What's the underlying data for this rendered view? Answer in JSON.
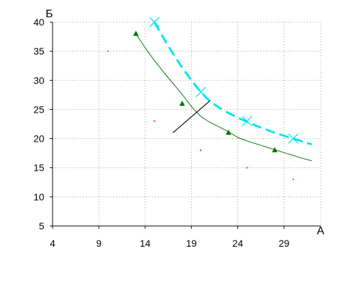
{
  "chart_data": {
    "type": "scatter",
    "xlabel": "А",
    "ylabel": "Б",
    "xlim": [
      4,
      33
    ],
    "ylim": [
      5,
      40
    ],
    "xticks": [
      4,
      9,
      14,
      19,
      24,
      29
    ],
    "yticks": [
      5,
      10,
      15,
      20,
      25,
      30,
      35,
      40
    ],
    "grid": true,
    "colors": {
      "green": "#007700",
      "cyan": "#00e5ee",
      "magenta": "#ff00ff",
      "grid": "#999999",
      "axis": "#000000"
    },
    "series": [
      {
        "marker": "triangle",
        "color": "#007700",
        "points": [
          [
            13,
            38
          ],
          [
            18,
            26
          ],
          [
            23,
            21
          ],
          [
            28,
            18
          ]
        ],
        "curve": [
          [
            13,
            38
          ],
          [
            14,
            35.6
          ],
          [
            15,
            33.4
          ],
          [
            16,
            31.4
          ],
          [
            17,
            29.5
          ],
          [
            18,
            27.6
          ],
          [
            19,
            25.5
          ],
          [
            20,
            23.8
          ],
          [
            21,
            22.8
          ],
          [
            22,
            22.0
          ],
          [
            23,
            21.2
          ],
          [
            24,
            20.2
          ],
          [
            25,
            19.6
          ],
          [
            26,
            19.1
          ],
          [
            27,
            18.6
          ],
          [
            28,
            18.1
          ],
          [
            29,
            17.6
          ],
          [
            30,
            17.1
          ],
          [
            31,
            16.6
          ],
          [
            32,
            16.2
          ]
        ]
      },
      {
        "marker": "x",
        "color": "#00e5ee",
        "points": [
          [
            15,
            40
          ],
          [
            20,
            28
          ],
          [
            25,
            23
          ],
          [
            30,
            20
          ]
        ],
        "curve": [
          [
            15,
            40
          ],
          [
            16,
            37.2
          ],
          [
            17,
            34.6
          ],
          [
            18,
            32.2
          ],
          [
            19,
            30.0
          ],
          [
            20,
            28.0
          ],
          [
            21,
            26.4
          ],
          [
            22,
            25.3
          ],
          [
            23,
            24.4
          ],
          [
            24,
            23.6
          ],
          [
            25,
            22.9
          ],
          [
            26,
            22.2
          ],
          [
            27,
            21.6
          ],
          [
            28,
            21.0
          ],
          [
            29,
            20.5
          ],
          [
            30,
            20.0
          ],
          [
            31,
            19.5
          ],
          [
            32,
            19.0
          ]
        ]
      },
      {
        "marker": "dot",
        "color": "#ff00ff",
        "points": [
          [
            10,
            35
          ],
          [
            15,
            23
          ],
          [
            20,
            18
          ],
          [
            25,
            15
          ],
          [
            30,
            13
          ]
        ]
      }
    ],
    "annotations": [
      {
        "type": "segment",
        "color": "#000000",
        "from": [
          17,
          21
        ],
        "to": [
          21,
          26.5
        ]
      }
    ]
  }
}
